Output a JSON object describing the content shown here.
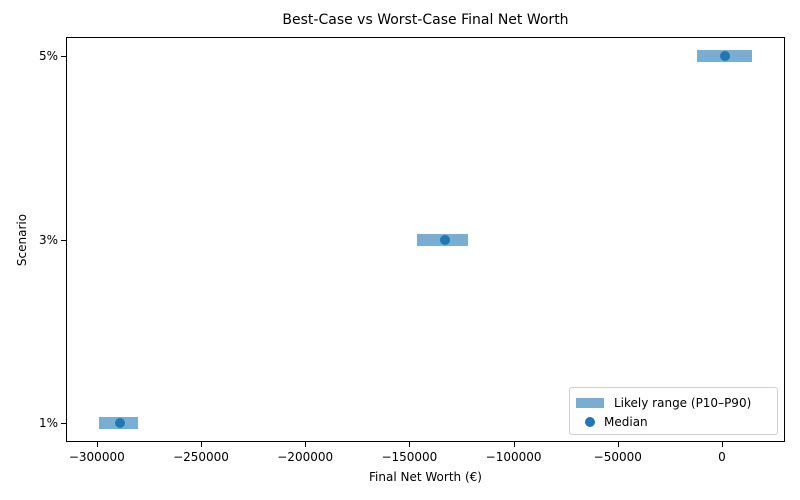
{
  "chart_data": {
    "type": "bar",
    "subtype": "horizontal range (floating bars) with median scatter",
    "title": "Best-Case vs Worst-Case Final Net Worth",
    "xlabel": "Final Net Worth (€)",
    "ylabel": "Scenario",
    "categories": [
      "1%",
      "3%",
      "5%"
    ],
    "series": [
      {
        "name": "Likely range (P10–P90)",
        "kind": "range",
        "low": [
          -299000,
          -146400,
          -12000
        ],
        "high": [
          -280200,
          -121900,
          14400
        ],
        "color": "#1f77b4",
        "alpha": 0.6
      },
      {
        "name": "Median",
        "kind": "scatter",
        "values": [
          -288900,
          -132900,
          1400
        ],
        "color": "#1f77b4"
      }
    ],
    "xlim": [
      -310000,
      31000
    ],
    "xticks": [
      -300000,
      -250000,
      -200000,
      -150000,
      -100000,
      -50000,
      0
    ],
    "xtick_labels": [
      "−300000",
      "−250000",
      "−200000",
      "−150000",
      "−100000",
      "−50000",
      "0"
    ],
    "yticks": [
      "1%",
      "3%",
      "5%"
    ],
    "grid": false,
    "legend_position": "lower right"
  },
  "legend": {
    "range_label": "Likely range (P10–P90)",
    "median_label": "Median"
  },
  "colors": {
    "series": "#1f77b4"
  }
}
